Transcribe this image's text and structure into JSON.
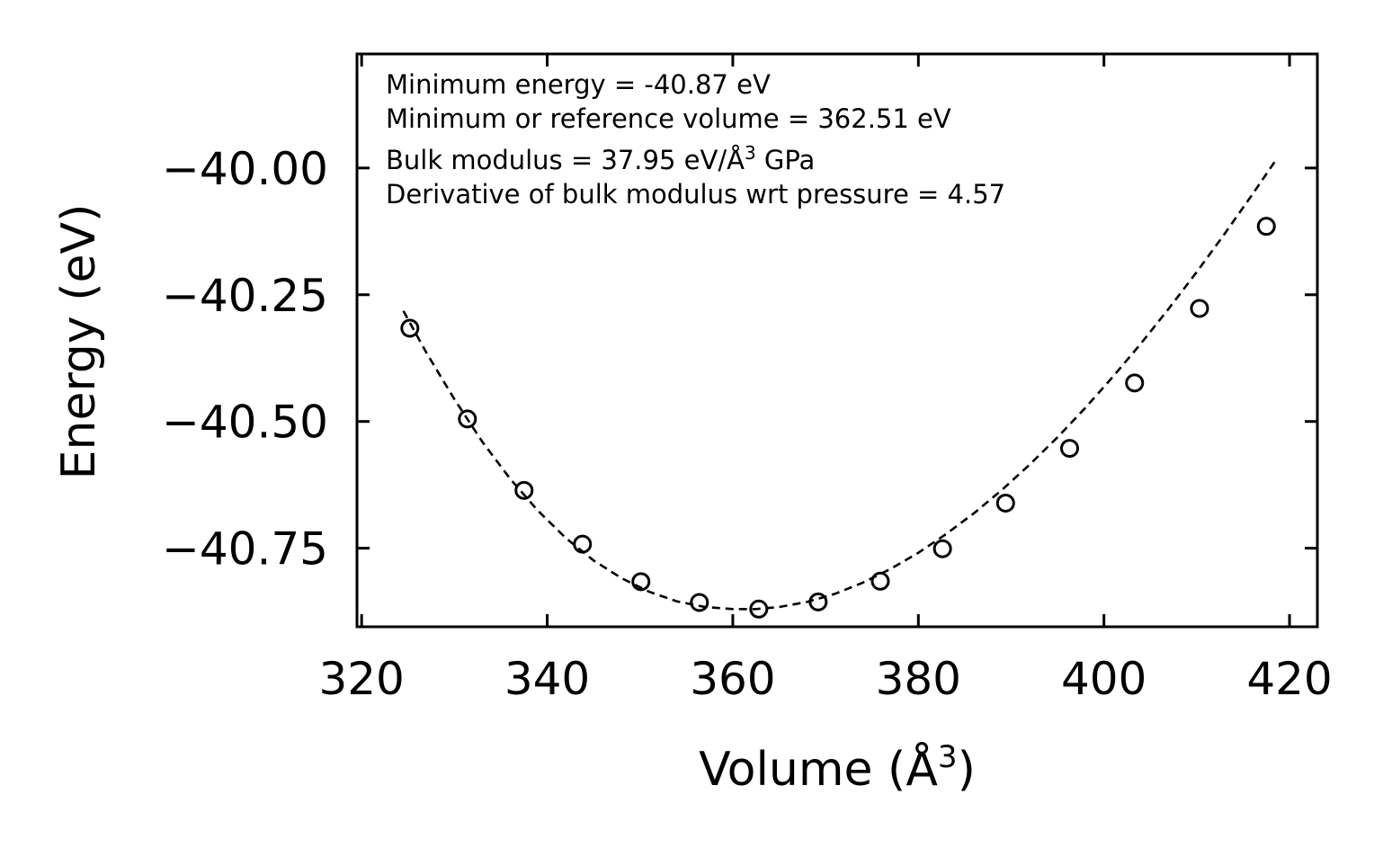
{
  "chart_data": {
    "type": "scatter",
    "title": "",
    "xlabel": "Volume (Å",
    "xlabel_sup": "3",
    "xlabel_close": ")",
    "ylabel": "Energy (eV)",
    "xlim": [
      319.5,
      423
    ],
    "ylim": [
      -40.905,
      -39.775
    ],
    "xticks": [
      320,
      340,
      360,
      380,
      400,
      420
    ],
    "xtick_labels": [
      "320",
      "340",
      "360",
      "380",
      "400",
      "420"
    ],
    "yticks": [
      -40.0,
      -40.25,
      -40.5,
      -40.75
    ],
    "ytick_labels": [
      "−40.00",
      "−40.25",
      "−40.50",
      "−40.75"
    ],
    "grid": false,
    "series": [
      {
        "name": "data",
        "style": "open-circle-markers",
        "color": "#000000",
        "x": [
          325.2,
          331.4,
          337.5,
          343.8,
          350.1,
          356.4,
          362.8,
          369.2,
          375.9,
          382.6,
          389.4,
          396.3,
          403.3,
          410.3,
          417.5
        ],
        "y": [
          -40.316,
          -40.495,
          -40.636,
          -40.742,
          -40.816,
          -40.857,
          -40.87,
          -40.856,
          -40.815,
          -40.751,
          -40.661,
          -40.553,
          -40.424,
          -40.277,
          -40.115
        ]
      },
      {
        "name": "fit",
        "style": "dashed-line",
        "color": "#000000",
        "x": [
          324.5,
          327,
          330,
          333,
          336,
          339,
          342,
          345,
          348,
          351,
          354,
          357,
          360,
          362.5,
          365,
          368,
          371,
          374,
          377,
          380,
          383,
          386,
          389,
          392,
          395,
          398,
          401,
          404,
          407,
          410,
          413,
          416,
          418.5
        ],
        "y": [
          -40.282,
          -40.365,
          -40.456,
          -40.54,
          -40.613,
          -40.676,
          -40.73,
          -40.774,
          -40.809,
          -40.836,
          -40.855,
          -40.866,
          -40.87,
          -40.87,
          -40.866,
          -40.856,
          -40.84,
          -40.818,
          -40.791,
          -40.759,
          -40.722,
          -40.681,
          -40.635,
          -40.585,
          -40.531,
          -40.473,
          -40.411,
          -40.346,
          -40.277,
          -40.205,
          -40.13,
          -40.052,
          -39.985
        ]
      }
    ],
    "annotations": [
      {
        "text": "Minimum energy = -40.87 eV"
      },
      {
        "text": "Minimum or reference volume = 362.51 eV"
      },
      {
        "text": "Bulk modulus = 37.95 eV/Å",
        "sup": "3",
        "suffix": " GPa"
      },
      {
        "text": "Derivative of bulk modulus wrt pressure = 4.57"
      }
    ],
    "annotation_position": "top-left"
  }
}
